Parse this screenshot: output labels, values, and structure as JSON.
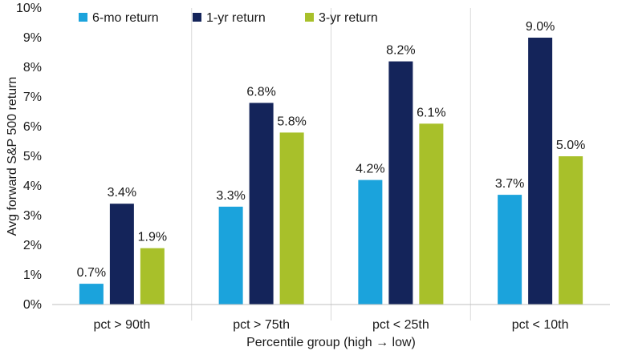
{
  "chart_data": {
    "type": "bar",
    "categories": [
      "pct > 90th",
      "pct > 75th",
      "pct < 25th",
      "pct < 10th"
    ],
    "series": [
      {
        "name": "6-mo return",
        "color": "#1ba3dc",
        "values": [
          0.7,
          3.3,
          4.2,
          3.7
        ],
        "labels": [
          "0.7%",
          "3.3%",
          "4.2%",
          "3.7%"
        ]
      },
      {
        "name": "1-yr return",
        "color": "#14245a",
        "values": [
          3.4,
          6.8,
          8.2,
          9.0
        ],
        "labels": [
          "3.4%",
          "6.8%",
          "8.2%",
          "9.0%"
        ]
      },
      {
        "name": "3-yr return",
        "color": "#a8c02a",
        "values": [
          1.9,
          5.8,
          6.1,
          5.0
        ],
        "labels": [
          "1.9%",
          "5.8%",
          "6.1%",
          "5.0%"
        ]
      }
    ],
    "xlabel": "Percentile group (high → low)",
    "ylabel": "Avg forward S&P 500 return",
    "ylim": [
      0,
      10
    ],
    "yticks": [
      "0%",
      "1%",
      "2%",
      "3%",
      "4%",
      "5%",
      "6%",
      "7%",
      "8%",
      "9%",
      "10%"
    ],
    "legend_position": "top-left",
    "grid": "vertical separators between groups"
  }
}
